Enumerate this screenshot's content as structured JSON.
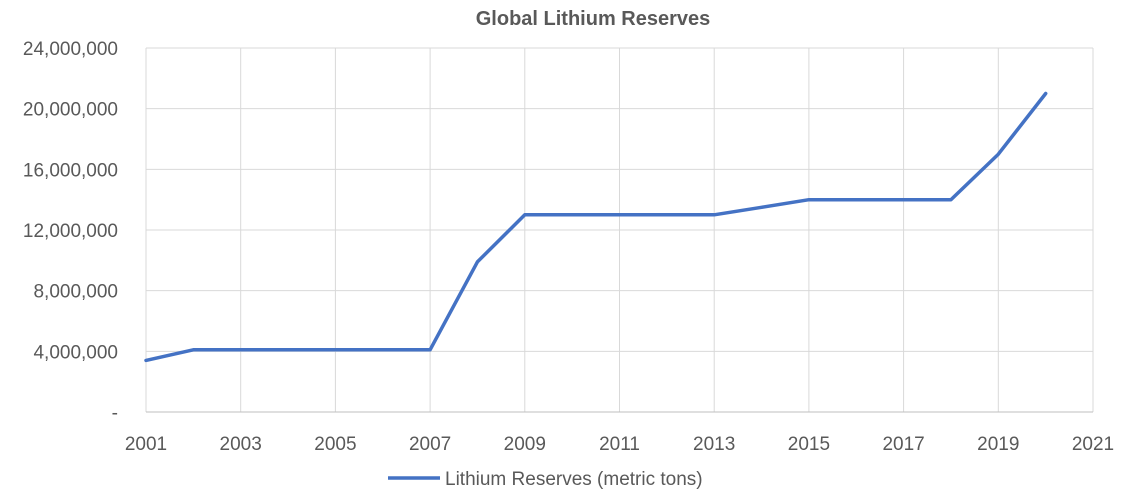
{
  "chart_data": {
    "type": "line",
    "title": "Global Lithium Reserves",
    "xlabel": "",
    "ylabel": "",
    "x": [
      2001,
      2002,
      2003,
      2004,
      2005,
      2006,
      2007,
      2008,
      2009,
      2010,
      2011,
      2012,
      2013,
      2014,
      2015,
      2016,
      2017,
      2018,
      2019,
      2020
    ],
    "series": [
      {
        "name": "Lithium Reserves (metric tons)",
        "color": "#4472C4",
        "values": [
          3400000,
          4100000,
          4100000,
          4100000,
          4100000,
          4100000,
          4100000,
          9900000,
          13000000,
          13000000,
          13000000,
          13000000,
          13000000,
          13500000,
          14000000,
          14000000,
          14000000,
          14000000,
          17000000,
          21000000
        ]
      }
    ],
    "xlim": [
      2001,
      2021
    ],
    "ylim": [
      0,
      24000000
    ],
    "x_ticks": [
      2001,
      2003,
      2005,
      2007,
      2009,
      2011,
      2013,
      2015,
      2017,
      2019,
      2021
    ],
    "y_ticks": [
      0,
      4000000,
      8000000,
      12000000,
      16000000,
      20000000,
      24000000
    ],
    "y_tick_labels": [
      "-",
      "4,000,000",
      "8,000,000",
      "12,000,000",
      "16,000,000",
      "20,000,000",
      "24,000,000"
    ],
    "grid": true,
    "legend_position": "bottom"
  }
}
